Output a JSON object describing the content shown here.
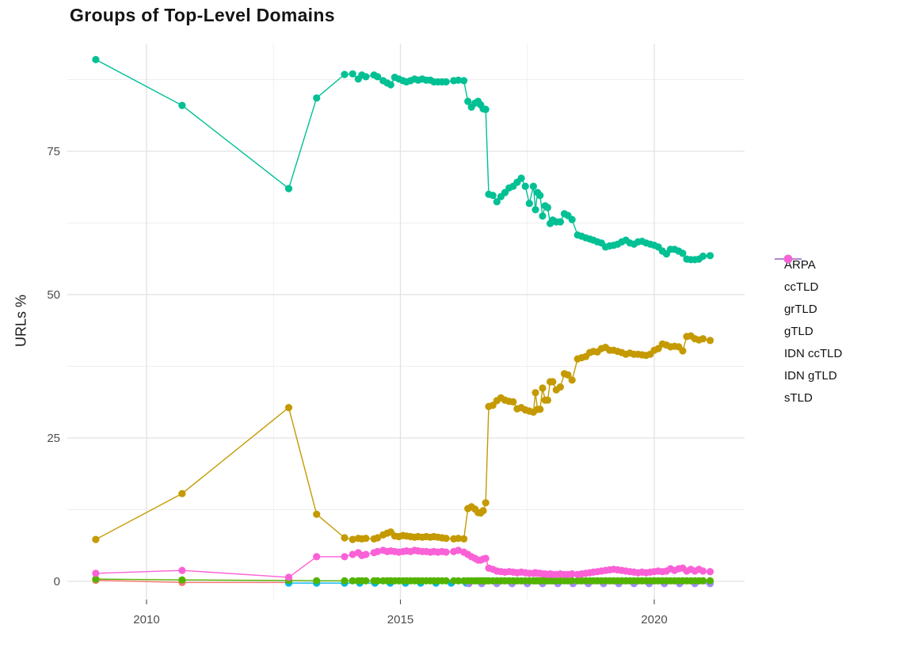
{
  "chart_data": {
    "type": "line",
    "title": "Groups of Top-Level Domains",
    "xlabel": "",
    "ylabel": "URLs %",
    "x_tick_labels": [
      "2010",
      "2015",
      "2020"
    ],
    "x_ticks": [
      2010,
      2015,
      2020
    ],
    "x_minor": [
      2012.5,
      2017.5
    ],
    "y_tick_labels": [
      "0",
      "25",
      "50",
      "75"
    ],
    "y_ticks": [
      0,
      25,
      50,
      75
    ],
    "y_minor": [
      12.5,
      37.5,
      62.5,
      87.5
    ],
    "xlim": [
      2008.44,
      2021.78
    ],
    "ylim": [
      -3.2,
      93.8
    ],
    "grid": true,
    "legend_position": "right",
    "draw_order": [
      "ARPA",
      "IDN ccTLD",
      "IDN gTLD",
      "grTLD",
      "ccTLD",
      "gTLD",
      "sTLD"
    ],
    "x": [
      2009.0,
      2010.7,
      2012.8,
      2013.35,
      2013.9,
      2014.06,
      2014.17,
      2014.24,
      2014.32,
      2014.48,
      2014.55,
      2014.66,
      2014.74,
      2014.81,
      2014.89,
      2014.97,
      2015.05,
      2015.12,
      2015.2,
      2015.28,
      2015.35,
      2015.43,
      2015.51,
      2015.59,
      2015.66,
      2015.74,
      2015.82,
      2015.9,
      2016.05,
      2016.14,
      2016.25,
      2016.33,
      2016.4,
      2016.47,
      2016.53,
      2016.58,
      2016.63,
      2016.68,
      2016.74,
      2016.82,
      2016.9,
      2016.98,
      2017.06,
      2017.14,
      2017.22,
      2017.3,
      2017.38,
      2017.46,
      2017.54,
      2017.62,
      2017.66,
      2017.7,
      2017.75,
      2017.8,
      2017.85,
      2017.9,
      2017.95,
      2018.0,
      2018.07,
      2018.15,
      2018.23,
      2018.3,
      2018.38,
      2018.49,
      2018.57,
      2018.65,
      2018.73,
      2018.8,
      2018.88,
      2018.96,
      2019.04,
      2019.12,
      2019.2,
      2019.28,
      2019.36,
      2019.44,
      2019.52,
      2019.6,
      2019.68,
      2019.76,
      2019.84,
      2019.92,
      2020.0,
      2020.08,
      2020.16,
      2020.24,
      2020.32,
      2020.4,
      2020.48,
      2020.56,
      2020.64,
      2020.72,
      2020.8,
      2020.88,
      2020.96,
      2021.1
    ],
    "series": [
      {
        "name": "ARPA",
        "color": "#F8766D",
        "x": [
          2009.0,
          2010.7,
          2012.8
        ],
        "y": [
          0.2,
          -0.2,
          -0.2
        ]
      },
      {
        "name": "ccTLD",
        "color": "#C49A00",
        "y": [
          7.3,
          15.3,
          30.3,
          11.7,
          7.6,
          7.3,
          7.5,
          7.4,
          7.5,
          7.4,
          7.6,
          8.1,
          8.4,
          8.6,
          7.9,
          7.8,
          8.0,
          7.9,
          7.8,
          7.7,
          7.8,
          7.7,
          7.8,
          7.7,
          7.8,
          7.7,
          7.6,
          7.5,
          7.4,
          7.5,
          7.4,
          12.7,
          13.0,
          12.6,
          12.0,
          11.9,
          12.3,
          13.7,
          30.5,
          30.7,
          31.5,
          32.0,
          31.6,
          31.4,
          31.3,
          30.1,
          30.3,
          29.9,
          29.7,
          29.5,
          32.9,
          30.0,
          30.0,
          33.7,
          31.6,
          31.6,
          34.8,
          34.8,
          33.4,
          33.9,
          36.2,
          36.0,
          35.1,
          38.8,
          39.0,
          39.2,
          39.9,
          40.1,
          40.0,
          40.6,
          40.8,
          40.3,
          40.3,
          40.1,
          39.9,
          39.6,
          39.8,
          39.6,
          39.6,
          39.5,
          39.4,
          39.6,
          40.3,
          40.6,
          41.4,
          41.2,
          40.9,
          41.0,
          40.9,
          40.2,
          42.7,
          42.8,
          42.3,
          42.1,
          42.3,
          42.0
        ]
      },
      {
        "name": "grTLD",
        "color": "#53B400",
        "y": [
          0.4,
          0.25,
          0.15,
          0.1,
          0.1,
          0.1,
          0.1,
          0.1,
          0.1,
          0.1,
          0.1,
          0.1,
          0.1,
          0.1,
          0.1,
          0.1,
          0.1,
          0.1,
          0.1,
          0.1,
          0.1,
          0.1,
          0.1,
          0.1,
          0.1,
          0.1,
          0.1,
          0.1,
          0.1,
          0.1,
          0.1,
          0.1,
          0.1,
          0.1,
          0.1,
          0.1,
          0.1,
          0.1,
          0.1,
          0.1,
          0.1,
          0.1,
          0.1,
          0.1,
          0.1,
          0.1,
          0.1,
          0.1,
          0.1,
          0.1,
          0.1,
          0.1,
          0.1,
          0.1,
          0.1,
          0.1,
          0.1,
          0.1,
          0.1,
          0.1,
          0.1,
          0.1,
          0.1,
          0.1,
          0.1,
          0.1,
          0.1,
          0.1,
          0.1,
          0.1,
          0.1,
          0.1,
          0.1,
          0.1,
          0.1,
          0.1,
          0.1,
          0.1,
          0.1,
          0.1,
          0.1,
          0.1,
          0.1,
          0.1,
          0.1,
          0.1,
          0.1,
          0.1,
          0.1,
          0.1,
          0.1,
          0.1,
          0.1,
          0.1,
          0.1,
          0.1
        ]
      },
      {
        "name": "gTLD",
        "color": "#00C094",
        "y": [
          91,
          83,
          68.5,
          84.3,
          88.4,
          88.5,
          87.6,
          88.3,
          88.0,
          88.3,
          88.0,
          87.3,
          86.9,
          86.6,
          87.9,
          87.6,
          87.3,
          87.1,
          87.3,
          87.6,
          87.4,
          87.6,
          87.4,
          87.4,
          87.1,
          87.1,
          87.1,
          87.1,
          87.3,
          87.4,
          87.3,
          83.7,
          82.7,
          83.4,
          83.7,
          83.1,
          82.4,
          82.3,
          67.5,
          67.3,
          66.2,
          67.1,
          67.8,
          68.6,
          68.9,
          69.6,
          70.3,
          68.9,
          65.9,
          68.9,
          64.8,
          67.8,
          67.3,
          63.7,
          65.5,
          65.2,
          62.4,
          63.0,
          62.7,
          62.7,
          64.1,
          63.8,
          63.1,
          60.4,
          60.2,
          59.9,
          59.7,
          59.5,
          59.2,
          59.0,
          58.3,
          58.5,
          58.6,
          58.8,
          59.2,
          59.5,
          59.0,
          58.8,
          59.2,
          59.3,
          59.0,
          58.8,
          58.6,
          58.3,
          57.6,
          57.1,
          57.9,
          57.9,
          57.6,
          57.2,
          56.2,
          56.1,
          56.1,
          56.2,
          56.7,
          56.8
        ]
      },
      {
        "name": "IDN ccTLD",
        "color": "#00B6EB",
        "x": [
          2012.8,
          2013.35,
          2013.9,
          2014.2,
          2014.5,
          2014.8,
          2015.1,
          2015.4,
          2015.7,
          2016.0,
          2016.3,
          2016.6,
          2016.9,
          2017.2,
          2017.5,
          2017.8,
          2018.1,
          2018.4,
          2018.7,
          2019.0,
          2019.3,
          2019.6,
          2019.9,
          2020.2,
          2020.5,
          2020.8,
          2021.1
        ],
        "y": [
          -0.3,
          -0.3,
          -0.3,
          -0.3,
          -0.3,
          -0.3,
          -0.3,
          -0.3,
          -0.3,
          -0.3,
          -0.3,
          -0.3,
          -0.3,
          -0.3,
          -0.3,
          -0.3,
          -0.3,
          -0.3,
          -0.3,
          -0.3,
          -0.3,
          -0.3,
          -0.3,
          -0.3,
          -0.3,
          -0.3,
          -0.3
        ]
      },
      {
        "name": "IDN gTLD",
        "color": "#A58AFF",
        "x": [
          2016.35,
          2016.6,
          2016.9,
          2017.2,
          2017.5,
          2017.8,
          2018.1,
          2018.4,
          2018.7,
          2019.0,
          2019.3,
          2019.6,
          2019.9,
          2020.2,
          2020.5,
          2020.8,
          2021.1
        ],
        "y": [
          -0.4,
          -0.4,
          -0.4,
          -0.4,
          -0.4,
          -0.4,
          -0.4,
          -0.4,
          -0.4,
          -0.4,
          -0.4,
          -0.4,
          -0.4,
          -0.4,
          -0.4,
          -0.4,
          -0.4
        ]
      },
      {
        "name": "sTLD",
        "color": "#FB61D7",
        "y": [
          1.4,
          1.9,
          0.7,
          4.3,
          4.3,
          4.7,
          5.0,
          4.5,
          4.7,
          5.0,
          5.2,
          5.4,
          5.2,
          5.3,
          5.2,
          5.1,
          5.2,
          5.3,
          5.2,
          5.4,
          5.3,
          5.2,
          5.2,
          5.1,
          5.2,
          5.1,
          5.2,
          5.1,
          5.2,
          5.4,
          5.1,
          4.7,
          4.3,
          4.0,
          3.7,
          3.7,
          3.9,
          4.0,
          2.3,
          2.1,
          1.8,
          1.7,
          1.6,
          1.7,
          1.6,
          1.5,
          1.6,
          1.5,
          1.4,
          1.4,
          1.5,
          1.4,
          1.4,
          1.3,
          1.3,
          1.2,
          1.3,
          1.2,
          1.2,
          1.3,
          1.2,
          1.2,
          1.3,
          1.2,
          1.3,
          1.4,
          1.5,
          1.6,
          1.7,
          1.8,
          1.9,
          2.0,
          2.1,
          2.0,
          1.9,
          1.8,
          1.7,
          1.6,
          1.5,
          1.6,
          1.5,
          1.6,
          1.7,
          1.8,
          1.7,
          1.8,
          2.2,
          1.9,
          2.2,
          2.3,
          1.8,
          2.1,
          1.8,
          2.1,
          1.8,
          1.7
        ]
      }
    ]
  }
}
